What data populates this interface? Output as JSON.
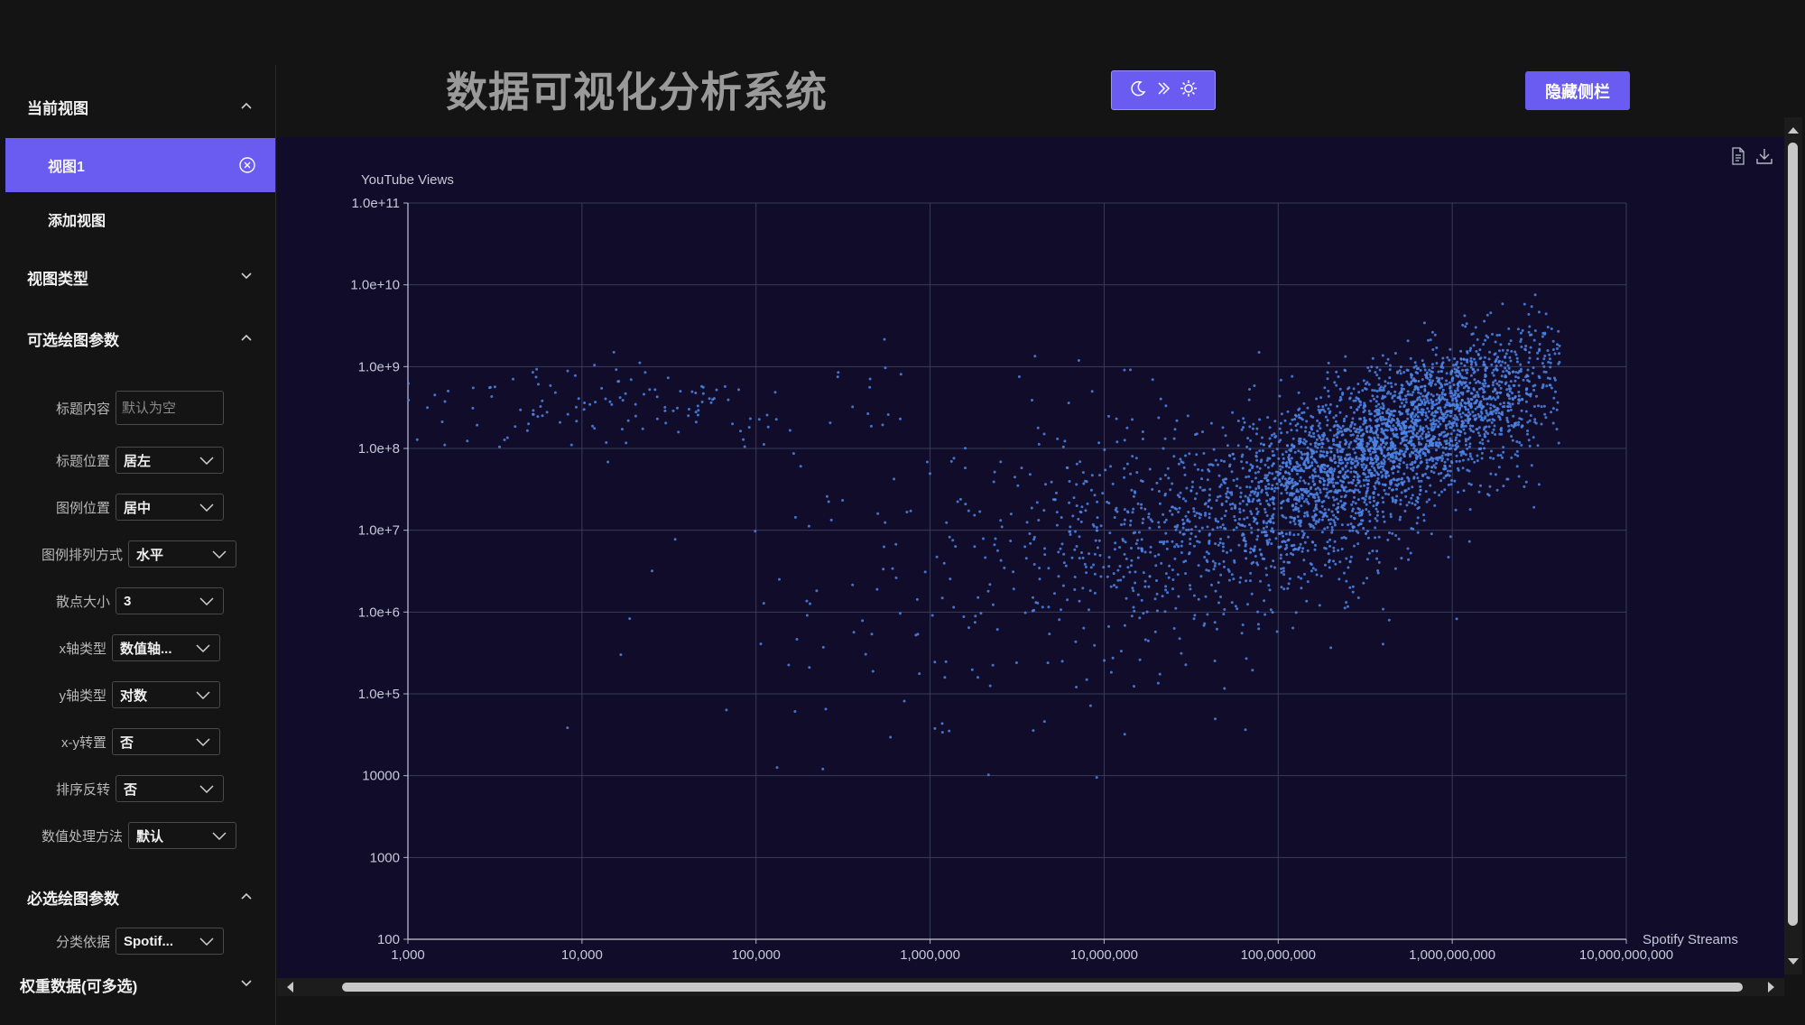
{
  "header": {
    "title": "数据可视化分析系统",
    "hide_sidebar_label": "隐藏侧栏"
  },
  "sidebar": {
    "current_view_label": "当前视图",
    "views": [
      {
        "label": "视图1"
      }
    ],
    "add_view_label": "添加视图",
    "view_type_label": "视图类型",
    "optional_params_label": "可选绘图参数",
    "optional_params": {
      "title_content": {
        "label": "标题内容",
        "placeholder": "默认为空"
      },
      "title_position": {
        "label": "标题位置",
        "value": "居左"
      },
      "legend_position": {
        "label": "图例位置",
        "value": "居中"
      },
      "legend_orient": {
        "label": "图例排列方式",
        "value": "水平"
      },
      "point_size": {
        "label": "散点大小",
        "value": "3"
      },
      "x_axis_type": {
        "label": "x轴类型",
        "value": "数值轴..."
      },
      "y_axis_type": {
        "label": "y轴类型",
        "value": "对数"
      },
      "xy_swap": {
        "label": "x-y转置",
        "value": "否"
      },
      "sort_reverse": {
        "label": "排序反转",
        "value": "否"
      },
      "value_method": {
        "label": "数值处理方法",
        "value": "默认"
      }
    },
    "required_params_label": "必选绘图参数",
    "required_params": {
      "category_by": {
        "label": "分类依据",
        "value": "Spotif..."
      }
    },
    "weight_data_label": "权重数据(可多选)"
  },
  "colors": {
    "accent": "#6a5cf0",
    "chart_bg": "#100c2a",
    "point": "#4f86e8"
  },
  "chart_data": {
    "type": "scatter",
    "xlabel": "Spotify Streams",
    "ylabel": "YouTube Views",
    "x_scale": "log",
    "y_scale": "log",
    "xlim": [
      1000,
      10000000000
    ],
    "ylim": [
      100,
      100000000000
    ],
    "x_tick_labels": [
      "1,000",
      "10,000",
      "100,000",
      "1,000,000",
      "10,000,000",
      "100,000,000",
      "1,000,000,000",
      "10,000,000,000"
    ],
    "y_tick_labels": [
      "100",
      "1000",
      "10000",
      "1.0e+5",
      "1.0e+6",
      "1.0e+7",
      "1.0e+8",
      "1.0e+9",
      "1.0e+10",
      "1.0e+11"
    ],
    "grid": true,
    "point_size": 3,
    "series": [
      {
        "clusters": [
          {
            "center_log10": [
              8.8,
              8.3
            ],
            "spread_log10": [
              0.45,
              0.55
            ],
            "count": 2200,
            "correlation": 0.65
          },
          {
            "center_log10": [
              8.2,
              7.4
            ],
            "spread_log10": [
              0.5,
              0.6
            ],
            "count": 1000,
            "correlation": 0.4
          },
          {
            "center_log10": [
              7.3,
              7.0
            ],
            "spread_log10": [
              0.5,
              0.8
            ],
            "count": 450,
            "correlation": 0.3
          },
          {
            "center_log10": [
              4.3,
              8.5
            ],
            "spread_log10": [
              0.75,
              0.25
            ],
            "count": 140,
            "correlation": 0.0
          },
          {
            "center_log10": [
              6.3,
              6.5
            ],
            "spread_log10": [
              0.9,
              1.1
            ],
            "count": 150,
            "correlation": 0.2
          }
        ]
      }
    ]
  }
}
